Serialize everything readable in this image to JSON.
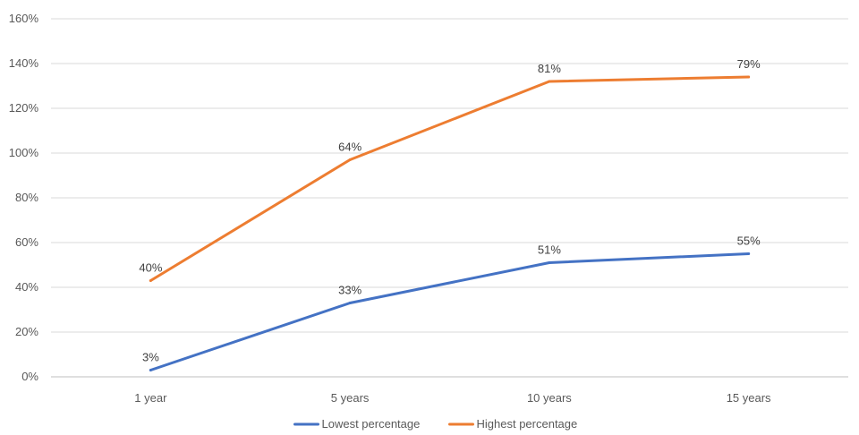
{
  "chart_data": {
    "type": "line",
    "categories": [
      "1 year",
      "5 years",
      "10 years",
      "15 years"
    ],
    "ylim": [
      0,
      160
    ],
    "yticks": [
      0,
      20,
      40,
      60,
      80,
      100,
      120,
      140,
      160
    ],
    "ytick_labels": [
      "0%",
      "20%",
      "40%",
      "60%",
      "80%",
      "100%",
      "120%",
      "140%",
      "160%"
    ],
    "grid": true,
    "legend_position": "bottom",
    "series": [
      {
        "name": "Lowest percentage",
        "color": "#4472C4",
        "values": [
          3,
          33,
          51,
          55
        ],
        "labels": [
          "3%",
          "33%",
          "51%",
          "55%"
        ]
      },
      {
        "name": "Highest percentage",
        "color": "#ED7D31",
        "values": [
          43,
          97,
          132,
          134
        ],
        "labels": [
          "40%",
          "64%",
          "81%",
          "79%"
        ]
      }
    ]
  }
}
